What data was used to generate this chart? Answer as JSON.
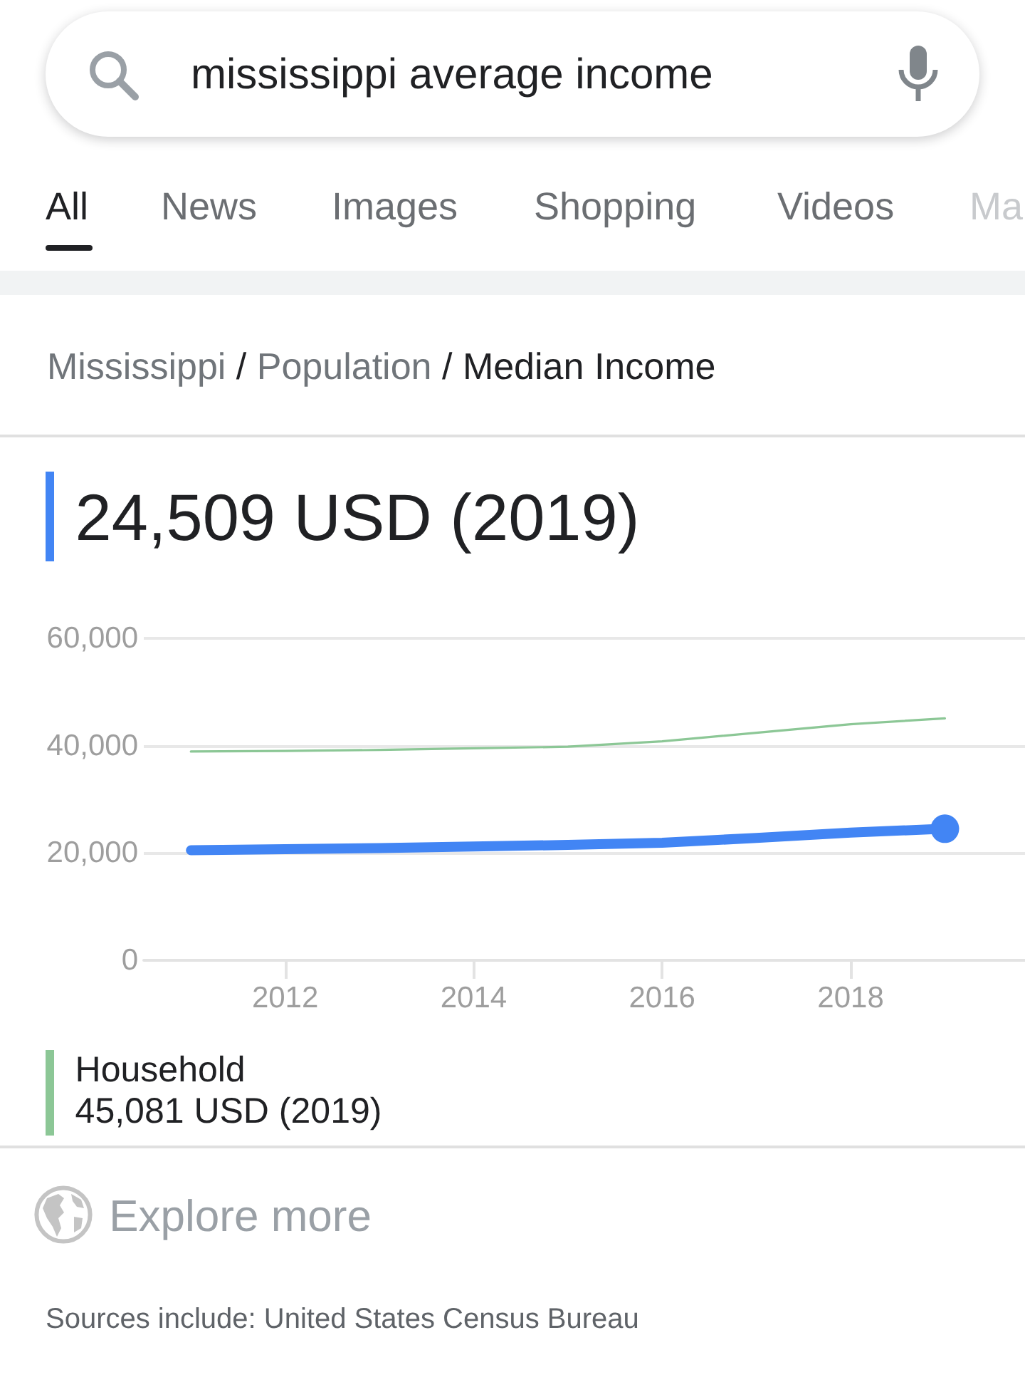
{
  "chart_data": {
    "type": "line",
    "title": "Mississippi / Population / Median Income",
    "subtitle": "24,509 USD (2019)",
    "annotations": [
      "mississippi average income",
      "All",
      "News",
      "Images",
      "Shopping",
      "Videos",
      "Ma",
      "45,081 USD (2019)",
      "Explore more",
      "Sources include: United States Census Bureau"
    ],
    "x": [
      2011,
      2012,
      2013,
      2014,
      2015,
      2016,
      2017,
      2018,
      2019
    ],
    "series": [
      {
        "color": "#4285f4",
        "values": [
          20500,
          20700,
          20900,
          21200,
          21500,
          21900,
          22800,
          23800,
          24509
        ]
      },
      {
        "name": "Household",
        "color": "#8cc796",
        "values": [
          38900,
          39000,
          39200,
          39500,
          39800,
          40800,
          42400,
          44000,
          45081
        ]
      },
      {
        "type": "scatter",
        "x": [
          2019
        ],
        "values": [
          24509
        ],
        "color": "#4285f4",
        "marker": "circle"
      }
    ],
    "xlim": [
      2010.5,
      2019.85
    ],
    "xticks": [
      2012,
      2014,
      2016,
      2018
    ],
    "ylim": [
      0,
      60000
    ],
    "yticks": [
      0,
      {
        "value": 20000,
        "label": "20,000"
      },
      {
        "value": 40000,
        "label": "40,000"
      },
      {
        "value": 60000,
        "label": "60,000"
      }
    ],
    "grid": "y",
    "legend": "bottom",
    "marker": "none",
    "line_style": "solid"
  }
}
